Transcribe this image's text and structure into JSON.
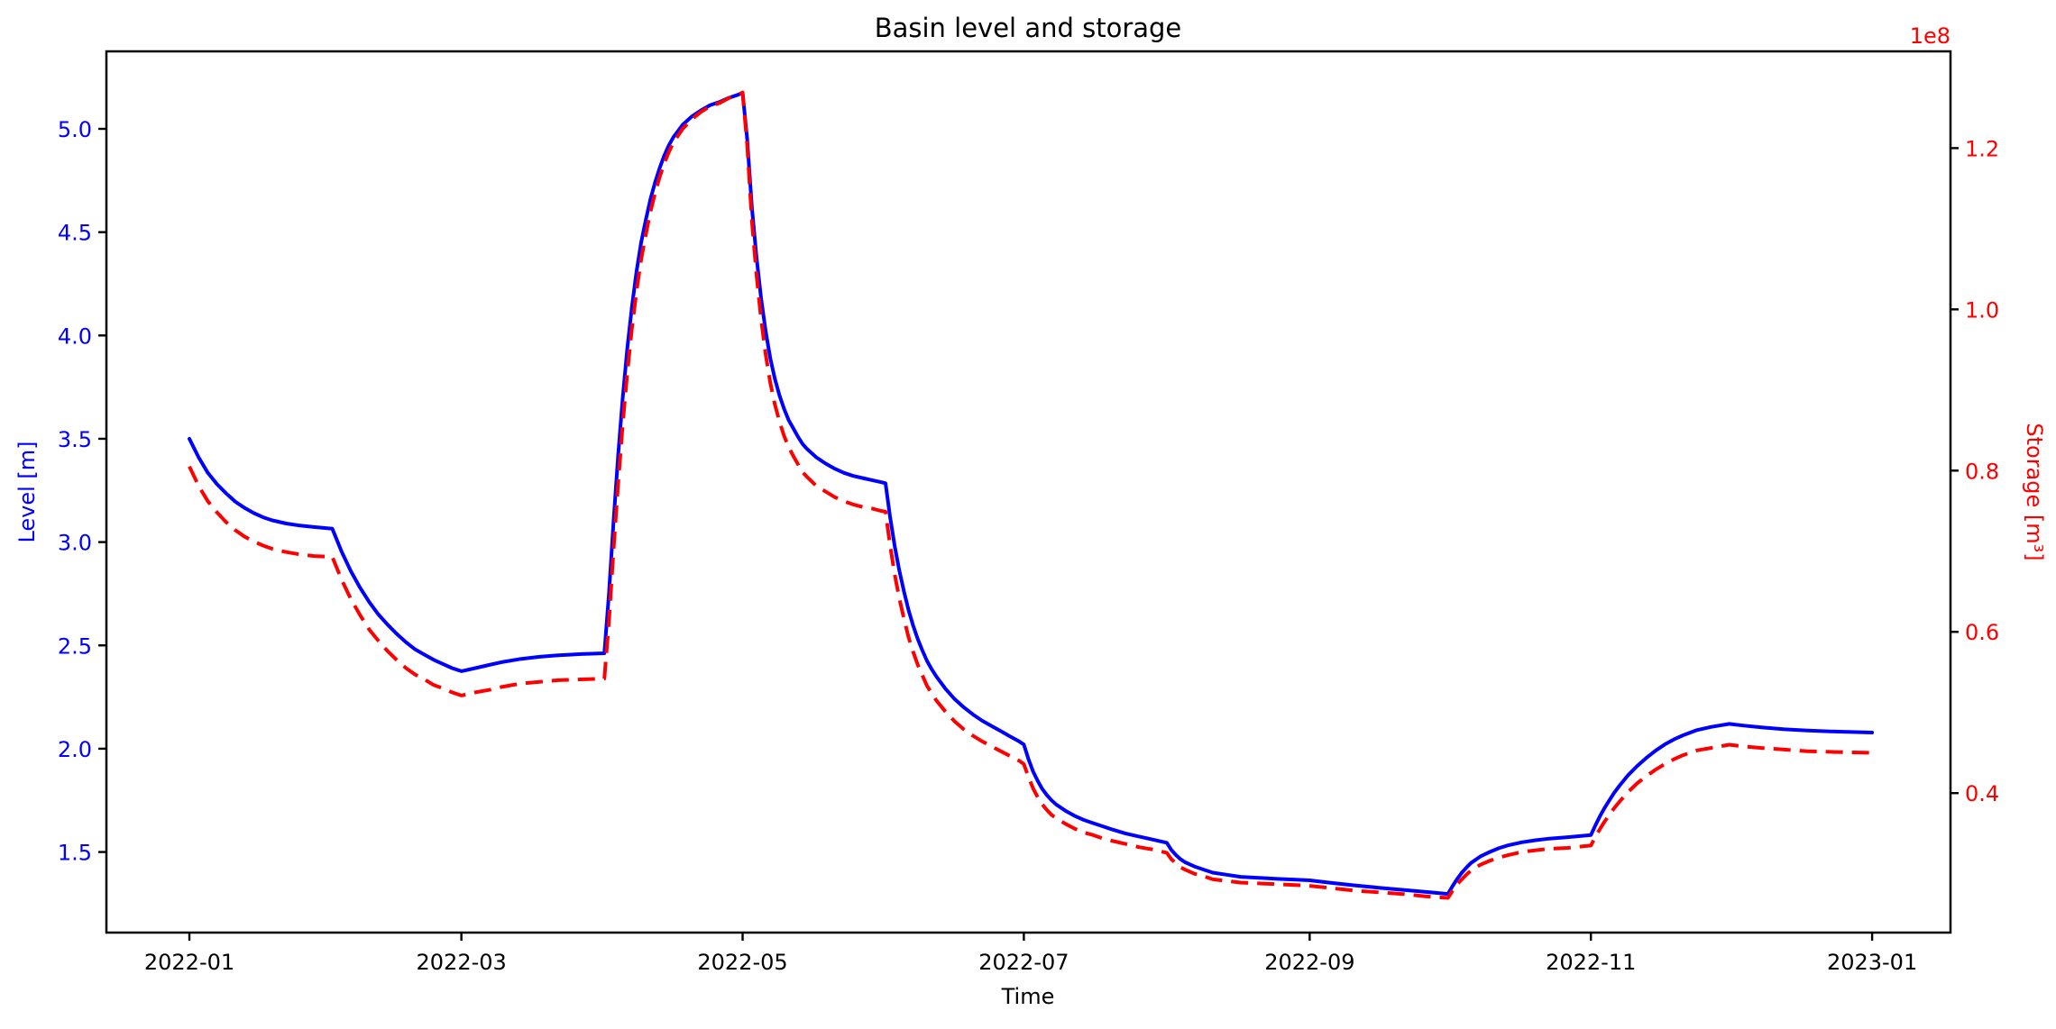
{
  "chart_data": {
    "type": "line",
    "title": "Basin level and storage",
    "xlabel": "Time",
    "ylabel_left": "Level [m]",
    "ylabel_right": "Storage [m³]",
    "right_axis_offset_label": "1e8",
    "legend": "none",
    "grid": false,
    "colors": {
      "level": "#0000ff",
      "storage": "#ff0000",
      "frame": "#000000",
      "background": "#ffffff"
    },
    "x_unit": "days since 2022-01-01",
    "xlim_days": [
      -18,
      382
    ],
    "ylim_left": [
      1.11,
      5.375
    ],
    "ylim_right_1e8": [
      0.227,
      1.32
    ],
    "x_ticks": [
      {
        "day": 0,
        "label": "2022-01"
      },
      {
        "day": 59,
        "label": "2022-03"
      },
      {
        "day": 120,
        "label": "2022-05"
      },
      {
        "day": 181,
        "label": "2022-07"
      },
      {
        "day": 243,
        "label": "2022-09"
      },
      {
        "day": 304,
        "label": "2022-11"
      },
      {
        "day": 365,
        "label": "2023-01"
      }
    ],
    "left_ticks": [
      "1.5",
      "2.0",
      "2.5",
      "3.0",
      "3.5",
      "4.0",
      "4.5",
      "5.0"
    ],
    "right_ticks": [
      "0.4",
      "0.6",
      "0.8",
      "1.0",
      "1.2"
    ],
    "x_days": [
      0,
      2,
      4,
      6,
      8,
      10,
      12,
      14,
      16,
      18,
      21,
      24,
      27,
      31,
      33,
      35,
      37,
      39,
      41,
      43,
      45,
      47,
      49,
      51,
      53,
      55,
      57,
      59,
      62,
      65,
      68,
      72,
      76,
      80,
      85,
      90,
      91,
      92,
      93,
      94,
      95,
      96,
      97,
      98,
      99,
      100,
      101,
      102,
      103,
      104,
      105,
      107,
      109,
      111,
      113,
      115,
      117,
      119,
      120,
      121,
      122,
      123,
      124,
      125,
      126,
      127,
      128,
      129,
      130,
      131,
      132,
      133,
      134,
      136,
      138,
      140,
      142,
      144,
      146,
      148,
      150,
      151,
      152,
      153,
      154,
      155,
      156,
      157,
      158,
      159,
      160,
      161,
      162,
      164,
      166,
      168,
      170,
      172,
      174,
      176,
      178,
      180,
      181,
      182,
      183,
      184,
      185,
      186,
      187,
      188,
      190,
      192,
      194,
      196,
      198,
      200,
      203,
      206,
      209,
      212,
      213,
      214,
      215,
      216,
      218,
      220,
      222,
      225,
      228,
      232,
      236,
      240,
      243,
      248,
      253,
      258,
      263,
      268,
      273,
      274,
      275,
      276,
      277,
      278,
      280,
      282,
      284,
      286,
      289,
      292,
      295,
      299,
      304,
      305,
      306,
      307,
      308,
      309,
      310,
      312,
      314,
      316,
      318,
      320,
      322,
      324,
      327,
      330,
      334,
      337,
      341,
      346,
      351,
      357,
      365
    ],
    "series": [
      {
        "name": "Level [m]",
        "axis": "left",
        "style": "solid",
        "color": "#0000ff",
        "values": [
          3.5,
          3.41,
          3.335,
          3.28,
          3.235,
          3.195,
          3.165,
          3.14,
          3.12,
          3.105,
          3.09,
          3.08,
          3.073,
          3.065,
          2.955,
          2.86,
          2.78,
          2.71,
          2.65,
          2.6,
          2.555,
          2.515,
          2.48,
          2.455,
          2.43,
          2.41,
          2.39,
          2.375,
          2.39,
          2.405,
          2.42,
          2.435,
          2.445,
          2.452,
          2.458,
          2.462,
          2.75,
          3.1,
          3.42,
          3.7,
          3.94,
          4.14,
          4.31,
          4.45,
          4.56,
          4.66,
          4.74,
          4.81,
          4.87,
          4.92,
          4.96,
          5.02,
          5.06,
          5.09,
          5.115,
          5.13,
          5.15,
          5.165,
          5.175,
          4.95,
          4.62,
          4.38,
          4.18,
          4.02,
          3.89,
          3.79,
          3.71,
          3.645,
          3.59,
          3.55,
          3.51,
          3.475,
          3.45,
          3.41,
          3.38,
          3.355,
          3.335,
          3.32,
          3.31,
          3.3,
          3.29,
          3.285,
          3.12,
          2.98,
          2.86,
          2.76,
          2.67,
          2.595,
          2.53,
          2.475,
          2.425,
          2.385,
          2.35,
          2.29,
          2.24,
          2.2,
          2.165,
          2.135,
          2.11,
          2.085,
          2.06,
          2.035,
          2.02,
          1.95,
          1.89,
          1.845,
          1.805,
          1.775,
          1.75,
          1.73,
          1.7,
          1.675,
          1.655,
          1.64,
          1.625,
          1.61,
          1.59,
          1.575,
          1.56,
          1.545,
          1.51,
          1.485,
          1.465,
          1.45,
          1.43,
          1.415,
          1.4,
          1.39,
          1.38,
          1.375,
          1.37,
          1.366,
          1.363,
          1.35,
          1.338,
          1.327,
          1.317,
          1.307,
          1.297,
          1.335,
          1.37,
          1.4,
          1.425,
          1.447,
          1.478,
          1.5,
          1.518,
          1.532,
          1.547,
          1.557,
          1.565,
          1.572,
          1.582,
          1.63,
          1.675,
          1.715,
          1.75,
          1.785,
          1.815,
          1.87,
          1.915,
          1.955,
          1.99,
          2.02,
          2.045,
          2.065,
          2.09,
          2.105,
          2.12,
          2.112,
          2.103,
          2.094,
          2.088,
          2.083,
          2.078
        ]
      },
      {
        "name": "Storage [m³]",
        "axis": "right",
        "style": "dashed",
        "color": "#ff0000",
        "values": [
          0.805,
          0.781,
          0.762,
          0.748,
          0.736,
          0.726,
          0.718,
          0.712,
          0.707,
          0.703,
          0.699,
          0.696,
          0.694,
          0.693,
          0.665,
          0.641,
          0.621,
          0.603,
          0.589,
          0.576,
          0.565,
          0.555,
          0.547,
          0.541,
          0.534,
          0.53,
          0.525,
          0.521,
          0.525,
          0.528,
          0.532,
          0.536,
          0.538,
          0.54,
          0.541,
          0.542,
          0.613,
          0.702,
          0.784,
          0.858,
          0.922,
          0.977,
          1.023,
          1.062,
          1.093,
          1.121,
          1.144,
          1.164,
          1.181,
          1.195,
          1.207,
          1.224,
          1.236,
          1.245,
          1.252,
          1.256,
          1.262,
          1.266,
          1.269,
          1.204,
          1.11,
          1.043,
          0.988,
          0.944,
          0.909,
          0.882,
          0.861,
          0.843,
          0.829,
          0.818,
          0.808,
          0.798,
          0.792,
          0.781,
          0.774,
          0.767,
          0.762,
          0.758,
          0.755,
          0.753,
          0.75,
          0.749,
          0.707,
          0.671,
          0.641,
          0.616,
          0.593,
          0.575,
          0.559,
          0.546,
          0.533,
          0.524,
          0.515,
          0.501,
          0.489,
          0.479,
          0.471,
          0.464,
          0.458,
          0.452,
          0.446,
          0.44,
          0.436,
          0.42,
          0.406,
          0.395,
          0.386,
          0.379,
          0.373,
          0.369,
          0.362,
          0.356,
          0.351,
          0.348,
          0.344,
          0.341,
          0.337,
          0.333,
          0.33,
          0.326,
          0.318,
          0.313,
          0.308,
          0.305,
          0.3,
          0.297,
          0.293,
          0.291,
          0.289,
          0.288,
          0.287,
          0.286,
          0.285,
          0.282,
          0.279,
          0.277,
          0.275,
          0.272,
          0.27,
          0.279,
          0.287,
          0.293,
          0.299,
          0.304,
          0.311,
          0.316,
          0.32,
          0.323,
          0.327,
          0.329,
          0.331,
          0.332,
          0.335,
          0.346,
          0.356,
          0.365,
          0.373,
          0.381,
          0.388,
          0.401,
          0.412,
          0.421,
          0.429,
          0.436,
          0.442,
          0.447,
          0.453,
          0.456,
          0.46,
          0.458,
          0.456,
          0.454,
          0.452,
          0.451,
          0.45
        ]
      }
    ]
  }
}
